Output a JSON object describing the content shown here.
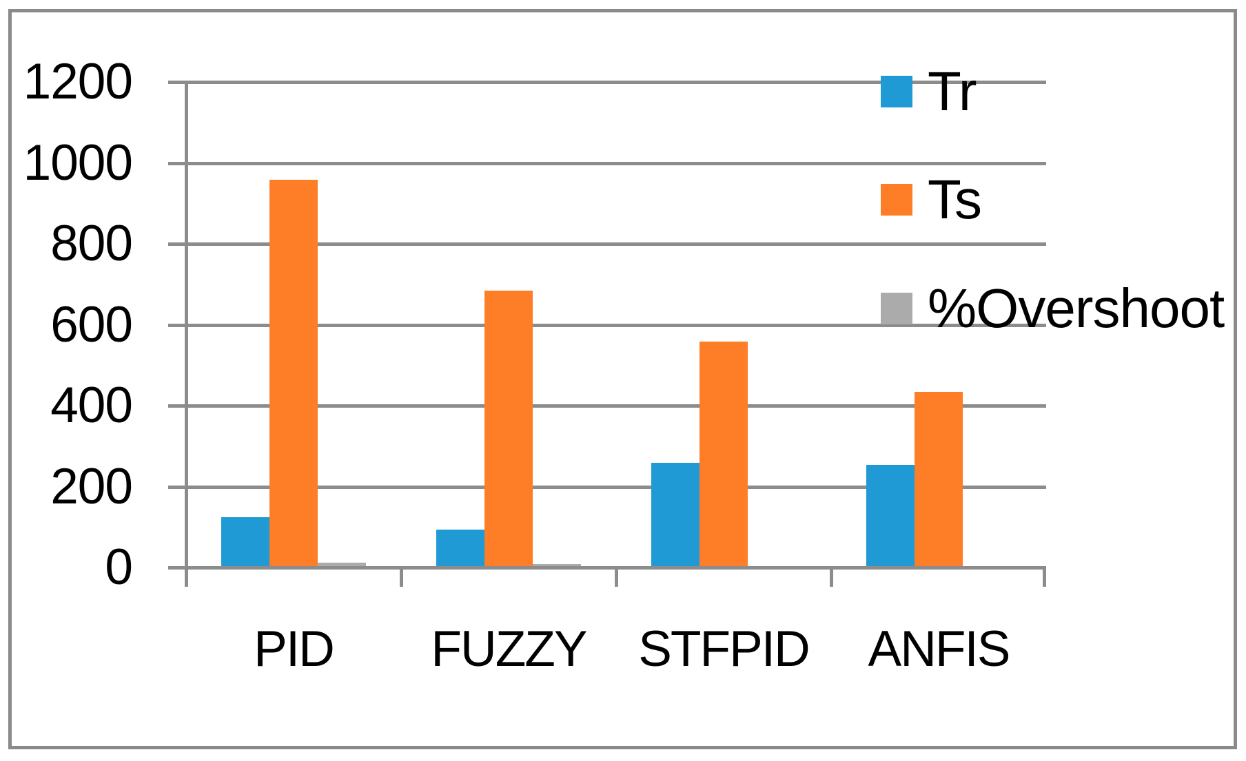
{
  "chart_data": {
    "type": "bar",
    "categories": [
      "PID",
      "FUZZY",
      "STFPID",
      "ANFIS"
    ],
    "series": [
      {
        "name": "Tr",
        "color": "#1f9ad5",
        "values": [
          120,
          90,
          255,
          250
        ]
      },
      {
        "name": "Ts",
        "color": "#fd7e26",
        "values": [
          955,
          680,
          555,
          430
        ]
      },
      {
        "name": "%Overshoot",
        "color": "#ababab",
        "values": [
          8,
          5,
          0,
          0
        ]
      }
    ],
    "title": "",
    "xlabel": "",
    "ylabel": "",
    "ylim": [
      0,
      1200
    ],
    "ytick_step": 200,
    "ytick_labels": [
      "0",
      "200",
      "400",
      "600",
      "800",
      "1000",
      "1200"
    ],
    "grid": true,
    "legend_position": "top-right",
    "legend_entries": [
      "Tr",
      "Ts",
      "%Overshoot"
    ]
  },
  "colors": {
    "grid": "#8c8c8c",
    "axis": "#8c8c8c",
    "frame": "#8a8a8a",
    "text": "#000000",
    "background": "#ffffff"
  }
}
